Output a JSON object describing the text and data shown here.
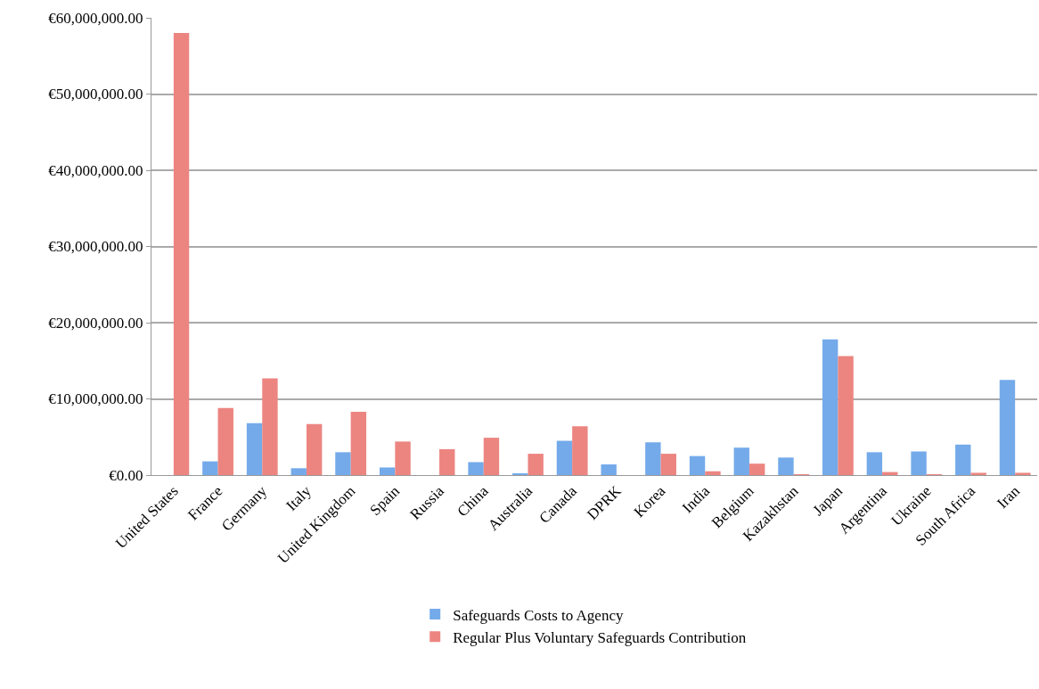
{
  "chart_data": {
    "type": "bar",
    "categories": [
      "United States",
      "France",
      "Germany",
      "Italy",
      "United Kingdom",
      "Spain",
      "Russia",
      "China",
      "Australia",
      "Canada",
      "DPRK",
      "Korea",
      "India",
      "Belgium",
      "Kazakhstan",
      "Japan",
      "Argentina",
      "Ukraine",
      "South Africa",
      "Iran"
    ],
    "series": [
      {
        "name": "Safeguards Costs to Agency",
        "color": "#74aaea",
        "values": [
          0,
          1800000.0,
          6800000.0,
          900000.0,
          3000000.0,
          1000000.0,
          0,
          1700000.0,
          200000.0,
          4500000.0,
          1400000.0,
          4300000.0,
          2500000.0,
          3600000.0,
          2300000.0,
          17800000.0,
          3000000.0,
          3100000.0,
          4000000.0,
          12500000.0
        ]
      },
      {
        "name": "Regular Plus Voluntary Safeguards Contribution",
        "color": "#ec8580",
        "values": [
          58000000.0,
          8800000.0,
          12700000.0,
          6700000.0,
          8300000.0,
          4400000.0,
          3400000.0,
          4900000.0,
          2800000.0,
          6400000.0,
          0,
          2800000.0,
          500000.0,
          1500000.0,
          100000.0,
          15600000.0,
          400000.0,
          100000.0,
          300000.0,
          300000.0
        ]
      }
    ],
    "ylim": [
      0,
      60000000
    ],
    "yticks": [
      {
        "value": 0,
        "label": "€0.00"
      },
      {
        "value": 10000000,
        "label": "€10,000,000.00"
      },
      {
        "value": 20000000,
        "label": "€20,000,000.00"
      },
      {
        "value": 30000000,
        "label": "€30,000,000.00"
      },
      {
        "value": 40000000,
        "label": "€40,000,000.00"
      },
      {
        "value": 50000000,
        "label": "€50,000,000.00"
      },
      {
        "value": 60000000,
        "label": "€60,000,000.00"
      }
    ],
    "grid": "y",
    "legend": "bottom"
  }
}
